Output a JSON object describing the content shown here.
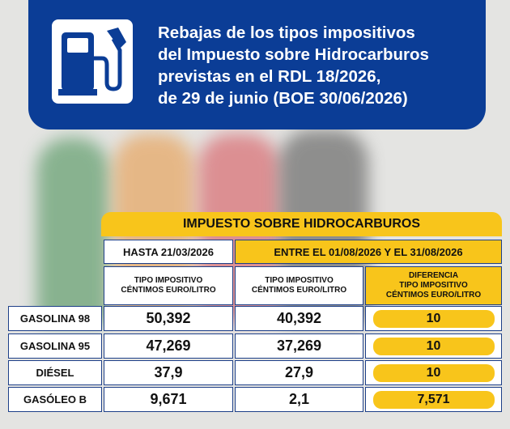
{
  "header": {
    "title_lines": [
      "Rebajas de los tipos impositivos",
      "del Impuesto sobre Hidrocarburos",
      "previstas en el RDL 18/2026,",
      "de 29 de junio (BOE 30/06/2026)"
    ]
  },
  "table": {
    "title": "IMPUESTO SOBRE HIDROCARBUROS",
    "period_headers": [
      "HASTA 21/03/2026",
      "ENTRE EL 01/08/2026 Y EL 31/08/2026"
    ],
    "column_headers": [
      [
        "TIPO IMPOSITIVO",
        "CÉNTIMOS EURO/LITRO"
      ],
      [
        "TIPO IMPOSITIVO",
        "CÉNTIMOS EURO/LITRO"
      ],
      [
        "DIFERENCIA",
        "TIPO IMPOSITIVO",
        "CÉNTIMOS EURO/LITRO"
      ]
    ],
    "rows": [
      [
        "GASOLINA 98",
        "50,392",
        "40,392",
        "10"
      ],
      [
        "GASOLINA 95",
        "47,269",
        "37,269",
        "10"
      ],
      [
        "DIÉSEL",
        "37,9",
        "27,9",
        "10"
      ],
      [
        "GASÓLEO B",
        "9,671",
        "2,1",
        "7,571"
      ]
    ]
  }
}
